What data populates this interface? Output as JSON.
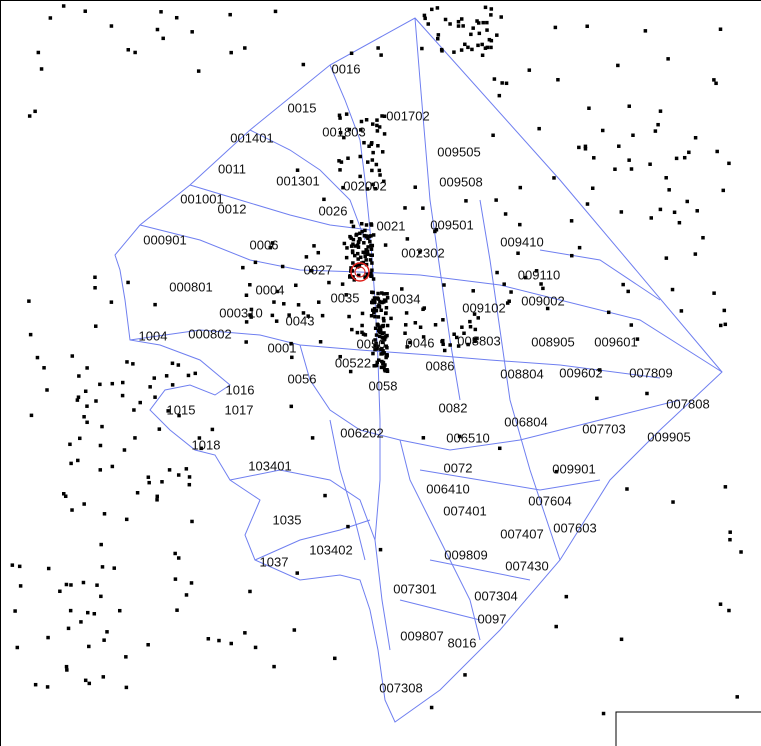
{
  "labels": [
    "0016",
    "0015",
    "001702",
    "001803",
    "001401",
    "009505",
    "0011",
    "001301",
    "002002",
    "009508",
    "001001",
    "0012",
    "0026",
    "0021",
    "009501",
    "000901",
    "0006",
    "009410",
    "002302",
    "0027",
    "009110",
    "000801",
    "0004",
    "0035",
    "0034",
    "009102",
    "009002",
    "000310",
    "0043",
    "1004",
    "000802",
    "0001",
    "0050",
    "0046",
    "008803",
    "008905",
    "009601",
    "00522",
    "0086",
    "0056",
    "0058",
    "008804",
    "009602",
    "007809",
    "1016",
    "1015",
    "1017",
    "0082",
    "006804",
    "007808",
    "007703",
    "009905",
    "006202",
    "006510",
    "1018",
    "103401",
    "0072",
    "009901",
    "006410",
    "007604",
    "007401",
    "1035",
    "007407",
    "007603",
    "103402",
    "1037",
    "009809",
    "007430",
    "007301",
    "007304",
    "0097",
    "009807",
    "8016",
    "007308"
  ]
}
